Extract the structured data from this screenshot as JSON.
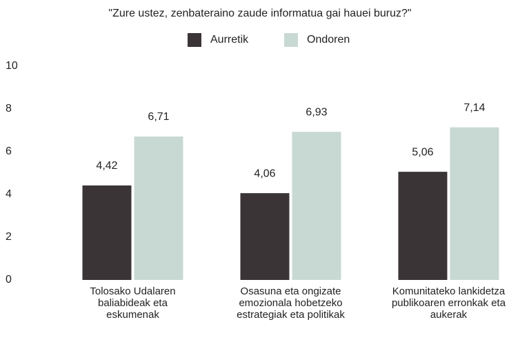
{
  "chart_data": {
    "type": "bar",
    "title": "\"Zure ustez, zenbateraino zaude informatua gai hauei buruz?\"",
    "categories": [
      "Tolosako Udalaren baliabideak eta eskumenak",
      "Osasuna eta ongizate emozionala hobetzeko estrategiak eta politikak",
      "Komunitateko lankidetza publikoaren erronkak eta aukerak"
    ],
    "series": [
      {
        "name": "Aurretik",
        "color": "#3a3436",
        "label_color": "#444444",
        "values": [
          4.42,
          4.06,
          5.06
        ],
        "value_labels": [
          "4,42",
          "4,06",
          "5,06"
        ]
      },
      {
        "name": "Ondoren",
        "color": "#c8d9d3",
        "label_color": "#c5d6d0",
        "values": [
          6.71,
          6.93,
          7.14
        ],
        "value_labels": [
          "6,71",
          "6,93",
          "7,14"
        ]
      }
    ],
    "ylim": [
      0,
      10
    ],
    "yticks": [
      0,
      2,
      4,
      6,
      8,
      10
    ],
    "grid": false,
    "legend": "top"
  }
}
